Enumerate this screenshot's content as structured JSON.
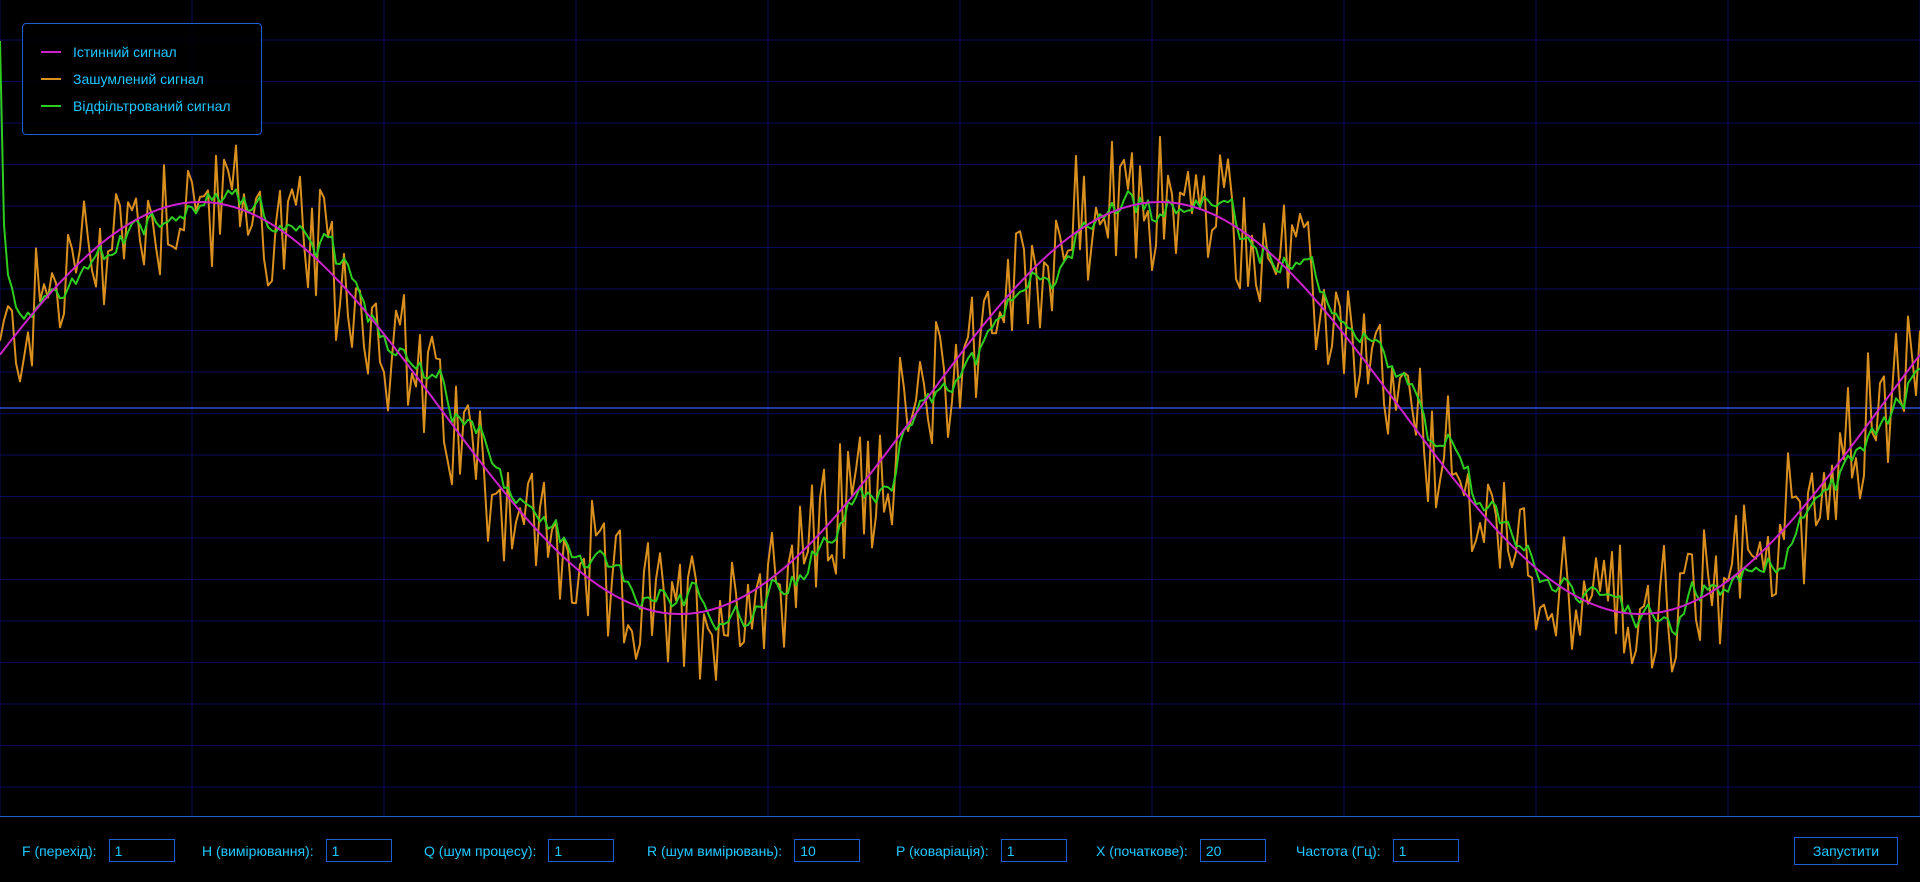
{
  "colors": {
    "true_signal": "#cc22cc",
    "noisy_signal": "#d9901f",
    "filtered_signal": "#2ecc1f",
    "grid": "#0a0a5c",
    "axis": "#2b4fd6",
    "text": "#1fc8ff"
  },
  "legend": {
    "items": [
      {
        "label": "Істинний сигнал",
        "color": "#cc22cc"
      },
      {
        "label": "Зашумлений сигнал",
        "color": "#d9901f"
      },
      {
        "label": "Відфільтрований сигнал",
        "color": "#2ecc1f"
      }
    ]
  },
  "controls": [
    {
      "label": "F (перехід):",
      "value": "1"
    },
    {
      "label": "H (вимірювання):",
      "value": "1"
    },
    {
      "label": "Q (шум процесу):",
      "value": "1"
    },
    {
      "label": "R (шум вимірювань):",
      "value": "10"
    },
    {
      "label": "P (коваріація):",
      "value": "1"
    },
    {
      "label": "X (початкове):",
      "value": "20"
    },
    {
      "label": "Частота (Гц):",
      "value": "1"
    }
  ],
  "run_button": {
    "label": "Запустити"
  },
  "chart_data": {
    "type": "line",
    "title": "",
    "xlabel": "",
    "ylabel": "",
    "grid": true,
    "legend_position": "top-left",
    "series": [
      {
        "name": "Істинний сигнал",
        "kind": "sine",
        "periods_visible": 2.0,
        "amplitude": 1.0
      },
      {
        "name": "Зашумлений сигнал",
        "kind": "sine_plus_noise",
        "noise_amplitude": 0.2
      },
      {
        "name": "Відфільтрований сигнал",
        "kind": "kalman_filtered",
        "initial_value": 20
      }
    ]
  }
}
